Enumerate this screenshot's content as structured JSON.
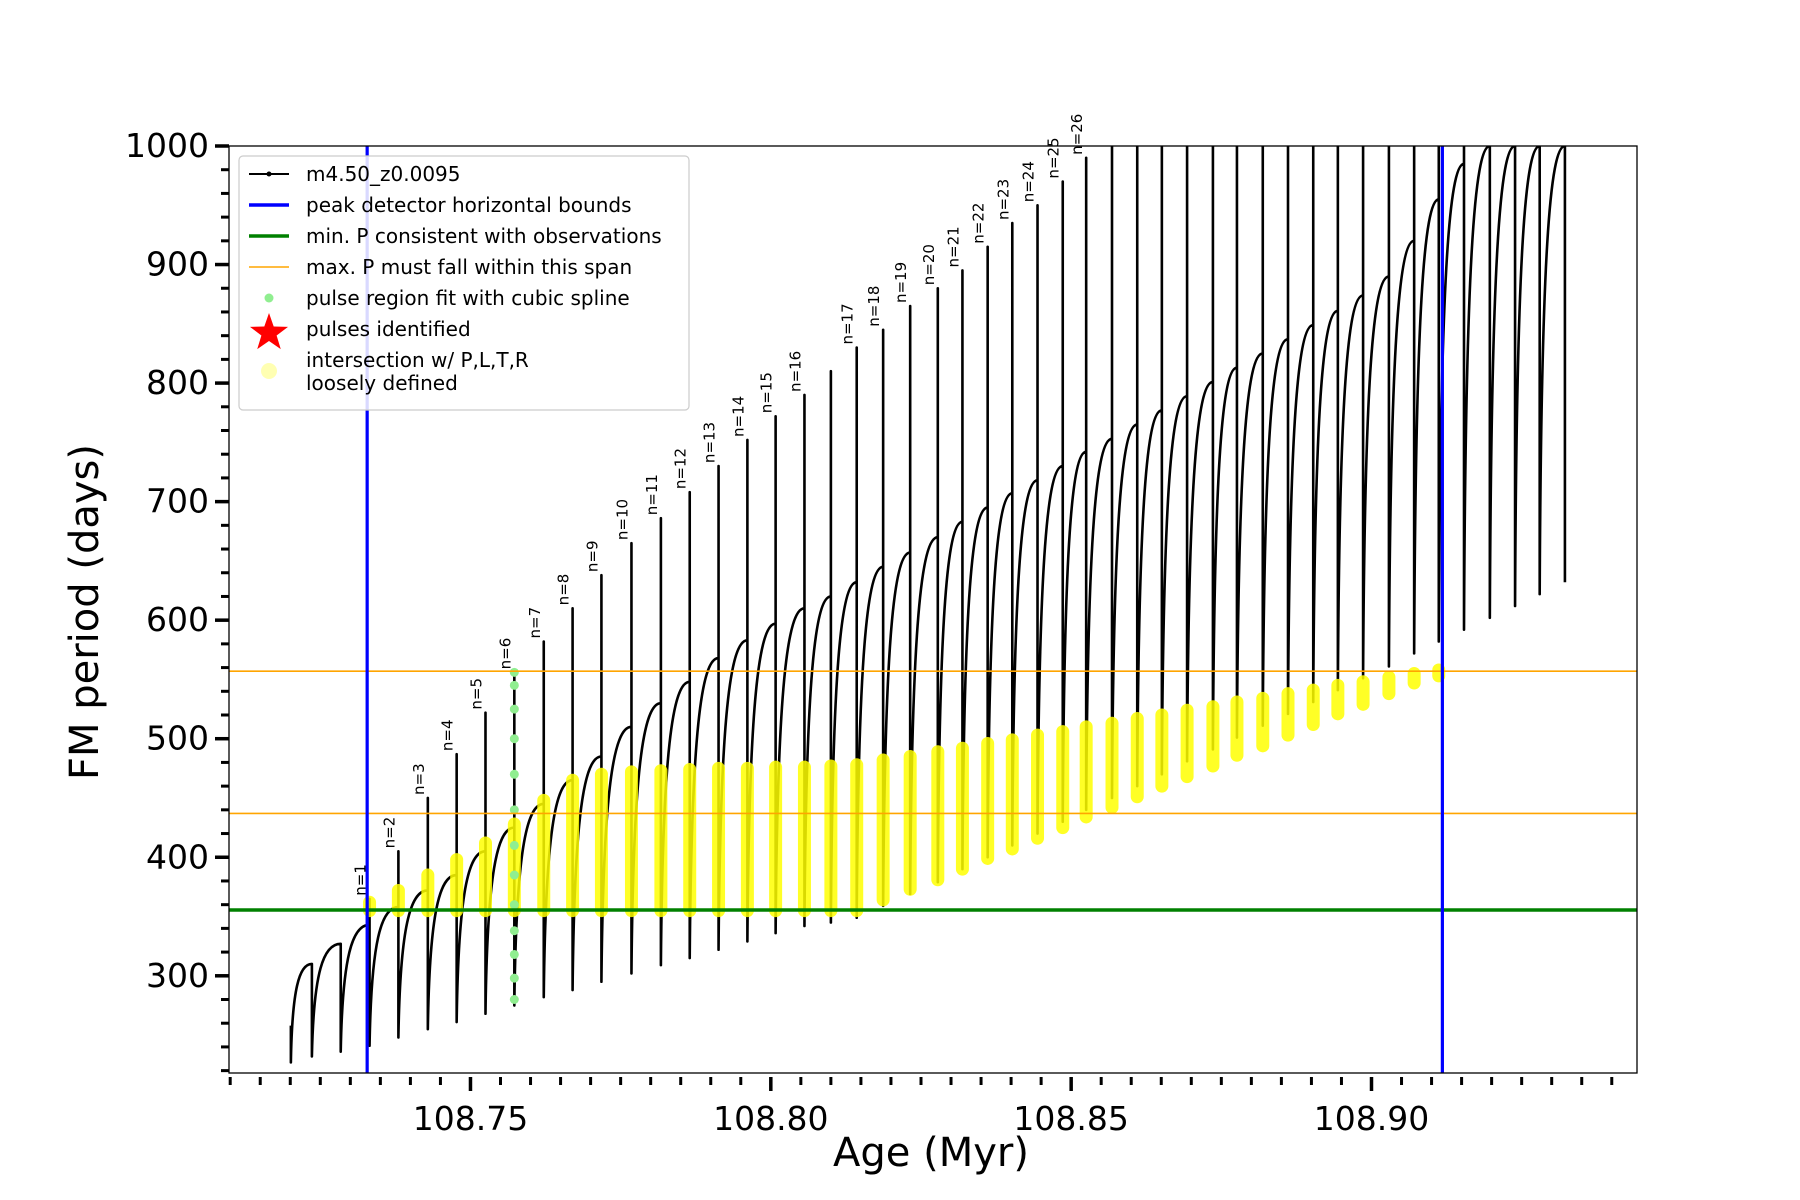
{
  "chart_data": {
    "type": "line",
    "xlabel": "Age (Myr)",
    "ylabel": "FM period (days)",
    "xlim": [
      108.7098,
      108.9442
    ],
    "ylim": [
      218,
      1000
    ],
    "xticks": [
      108.75,
      {
        "value": 108.8,
        "label": "108.80"
      },
      108.85,
      {
        "value": 108.9,
        "label": "108.90"
      }
    ],
    "xminorticks": [
      108.71,
      108.715,
      108.72,
      108.725,
      108.73,
      108.735,
      108.74,
      108.745,
      108.755,
      108.76,
      108.765,
      108.77,
      108.775,
      108.78,
      108.785,
      108.79,
      108.795,
      108.805,
      108.81,
      108.815,
      108.82,
      108.825,
      108.83,
      108.835,
      108.84,
      108.845,
      108.855,
      108.86,
      108.865,
      108.87,
      108.875,
      108.88,
      108.885,
      108.89,
      108.895,
      108.905,
      108.91,
      108.915,
      108.92,
      108.925,
      108.93,
      108.935,
      108.94
    ],
    "yticks": [
      300,
      400,
      500,
      600,
      700,
      800,
      900,
      1000
    ],
    "yminorticks": [
      220,
      240,
      260,
      280,
      320,
      340,
      360,
      380,
      420,
      440,
      460,
      480,
      520,
      540,
      560,
      580,
      620,
      640,
      660,
      680,
      720,
      740,
      760,
      780,
      820,
      840,
      860,
      880,
      920,
      940,
      960,
      980
    ],
    "grid": false,
    "legend": "upper left",
    "series": [
      {
        "name": "m4.50_z0.0095",
        "type": "line",
        "color": "#000000",
        "x": [
          108.7201,
          108.7201,
          108.7236,
          108.7236,
          108.7284,
          108.7284,
          108.7332,
          108.7332,
          108.7332,
          108.738,
          108.738,
          108.738,
          108.7429,
          108.7429,
          108.7429,
          108.7477,
          108.7477,
          108.7477,
          108.7525,
          108.7525,
          108.7525,
          108.7573,
          108.7573,
          108.7573,
          108.7622,
          108.7622,
          108.7622,
          108.767,
          108.767,
          108.767,
          108.7718,
          108.7718,
          108.7718,
          108.7768,
          108.7768,
          108.7768,
          108.7817,
          108.7817,
          108.7817,
          108.7865,
          108.7865,
          108.7865,
          108.7913,
          108.7913,
          108.7913,
          108.7961,
          108.7961,
          108.7961,
          108.8008,
          108.8008,
          108.8008,
          108.8056,
          108.8056,
          108.8056,
          108.81,
          108.81,
          108.81,
          108.8143,
          108.8143,
          108.8143,
          108.8187,
          108.8187,
          108.8187,
          108.8232,
          108.8232,
          108.8232,
          108.8278,
          108.8278,
          108.8278,
          108.8319,
          108.8319,
          108.8319,
          108.8361,
          108.8361,
          108.8361,
          108.8402,
          108.8402,
          108.8402,
          108.8444,
          108.8444,
          108.8444,
          108.8486,
          108.8486,
          108.8486,
          108.8525,
          108.8525,
          108.8525,
          108.8568,
          108.8568,
          108.8568,
          108.861,
          108.861,
          108.861,
          108.8651,
          108.8651,
          108.8651,
          108.8693,
          108.8693,
          108.8693,
          108.8736,
          108.8736,
          108.8736,
          108.8776,
          108.8776,
          108.8776,
          108.8819,
          108.8819,
          108.8819,
          108.8861,
          108.8861,
          108.8861,
          108.8903,
          108.8903,
          108.8903,
          108.8944,
          108.8944,
          108.8944,
          108.8986,
          108.8986,
          108.8986,
          108.9029,
          108.9029,
          108.9029,
          108.9071,
          108.9071,
          108.9071,
          108.9112,
          108.9112,
          108.9112,
          108.9154,
          108.9154,
          108.9154,
          108.9197,
          108.9197,
          108.9197,
          108.9239,
          108.9239,
          108.9239,
          108.928,
          108.928,
          108.928,
          108.9322,
          108.9322,
          108.9322
        ],
        "values": [
          258,
          227,
          310,
          232,
          327,
          236,
          343,
          365,
          241,
          358,
          405,
          248,
          372,
          450,
          255,
          385,
          487,
          261,
          405,
          522,
          268,
          425,
          556,
          275,
          445,
          582,
          282,
          465,
          610,
          288,
          485,
          638,
          295,
          510,
          665,
          302,
          530,
          686,
          309,
          548,
          708,
          315,
          568,
          730,
          322,
          583,
          752,
          329,
          597,
          772,
          336,
          610,
          790,
          342,
          620,
          810,
          345,
          632,
          830,
          349,
          645,
          845,
          359,
          657,
          865,
          369,
          670,
          880,
          379,
          683,
          895,
          390,
          695,
          915,
          400,
          707,
          935,
          410,
          718,
          950,
          420,
          730,
          970,
          430,
          742,
          990,
          440,
          753,
          1000,
          450,
          765,
          1000,
          460,
          777,
          1000,
          470,
          789,
          1000,
          481,
          801,
          1000,
          491,
          813,
          1000,
          501,
          825,
          1000,
          511,
          837,
          1000,
          521,
          849,
          1000,
          531,
          861,
          1000,
          541,
          874,
          1000,
          551,
          890,
          1000,
          561,
          920,
          1000,
          572,
          955,
          1000,
          582,
          985,
          1000,
          592,
          1000,
          1000,
          602,
          1000,
          1000,
          612,
          1000,
          1000,
          622,
          1000,
          1000,
          632
        ]
      },
      {
        "name": "peak detector horizontal bounds",
        "type": "vline",
        "color": "#0000ff",
        "x": [
          108.7328,
          108.9118
        ]
      },
      {
        "name": "min. P consistent with observations",
        "type": "hline",
        "color": "#008000",
        "values": [
          355.5
        ]
      },
      {
        "name": "max. P must fall within this span",
        "type": "hline",
        "color": "#ffa500",
        "values": [
          437,
          557
        ]
      },
      {
        "name": "pulse region fit with cubic spline",
        "type": "scatter",
        "color": "#90ee90",
        "x": [
          108.7573,
          108.7573,
          108.7573,
          108.7573,
          108.7573,
          108.7573,
          108.7573,
          108.7573,
          108.7573,
          108.7573,
          108.7573,
          108.7573,
          108.7573
        ],
        "values": [
          280,
          298,
          318,
          338,
          360,
          385,
          410,
          440,
          470,
          500,
          525,
          545,
          556
        ]
      },
      {
        "name": "pulses identified",
        "type": "scatter",
        "marker": "star",
        "color": "#ff0000",
        "x": [],
        "values": []
      },
      {
        "name": "intersection w/ P,L,T,R\nloosely defined",
        "type": "range",
        "color": "#ffff00",
        "x": [
          108.7332,
          108.738,
          108.7429,
          108.7477,
          108.7525,
          108.7573,
          108.7622,
          108.767,
          108.7718,
          108.7768,
          108.7817,
          108.7865,
          108.7913,
          108.7961,
          108.8008,
          108.8056,
          108.81,
          108.8143,
          108.8187,
          108.8232,
          108.8278,
          108.8319,
          108.8361,
          108.8402,
          108.8444,
          108.8486,
          108.8525,
          108.8568,
          108.861,
          108.8651,
          108.8693,
          108.8736,
          108.8776,
          108.8819,
          108.8861,
          108.8903,
          108.8944,
          108.8986,
          108.9029,
          108.9071,
          108.9112
        ],
        "low": [
          355,
          355,
          355,
          355,
          355,
          355,
          355,
          355,
          355,
          355,
          355,
          355,
          355,
          355,
          355,
          355,
          355,
          355,
          364,
          373,
          381,
          390,
          399,
          407,
          416,
          425,
          434,
          442,
          451,
          460,
          468,
          477,
          486,
          494,
          503,
          512,
          521,
          529,
          538,
          547,
          553
        ],
        "high": [
          362,
          372,
          385,
          398,
          412,
          428,
          448,
          465,
          470,
          472,
          473,
          474,
          475,
          475,
          476,
          476,
          477,
          478,
          482,
          485,
          489,
          492,
          496,
          499,
          503,
          506,
          510,
          513,
          517,
          520,
          524,
          527,
          531,
          534,
          538,
          541,
          545,
          548,
          552,
          555,
          558
        ]
      }
    ],
    "annotations": [
      {
        "text": "n=1",
        "x": 108.7332,
        "y": 365
      },
      {
        "text": "n=2",
        "x": 108.738,
        "y": 405
      },
      {
        "text": "n=3",
        "x": 108.7429,
        "y": 450
      },
      {
        "text": "n=4",
        "x": 108.7477,
        "y": 487
      },
      {
        "text": "n=5",
        "x": 108.7525,
        "y": 522
      },
      {
        "text": "n=6",
        "x": 108.7573,
        "y": 556
      },
      {
        "text": "n=7",
        "x": 108.7622,
        "y": 582
      },
      {
        "text": "n=8",
        "x": 108.767,
        "y": 610
      },
      {
        "text": "n=9",
        "x": 108.7718,
        "y": 638
      },
      {
        "text": "n=10",
        "x": 108.7768,
        "y": 665
      },
      {
        "text": "n=11",
        "x": 108.7817,
        "y": 686
      },
      {
        "text": "n=12",
        "x": 108.7865,
        "y": 708
      },
      {
        "text": "n=13",
        "x": 108.7913,
        "y": 730
      },
      {
        "text": "n=14",
        "x": 108.7961,
        "y": 752
      },
      {
        "text": "n=15",
        "x": 108.8008,
        "y": 772
      },
      {
        "text": "n=16",
        "x": 108.8056,
        "y": 790
      },
      {
        "text": "n=17",
        "x": 108.8143,
        "y": 830
      },
      {
        "text": "n=18",
        "x": 108.8187,
        "y": 845
      },
      {
        "text": "n=19",
        "x": 108.8232,
        "y": 865
      },
      {
        "text": "n=20",
        "x": 108.8278,
        "y": 880
      },
      {
        "text": "n=21",
        "x": 108.8319,
        "y": 895
      },
      {
        "text": "n=22",
        "x": 108.8361,
        "y": 915
      },
      {
        "text": "n=23",
        "x": 108.8402,
        "y": 935
      },
      {
        "text": "n=24",
        "x": 108.8444,
        "y": 950
      },
      {
        "text": "n=25",
        "x": 108.8486,
        "y": 970
      },
      {
        "text": "n=26",
        "x": 108.8525,
        "y": 990
      }
    ]
  }
}
